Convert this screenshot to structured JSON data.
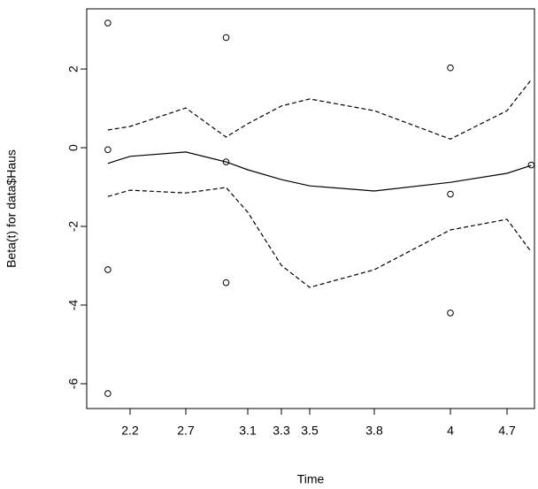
{
  "chart_data": {
    "type": "scatter",
    "x_label": "Time",
    "y_label": "Beta(t) for data$Haus",
    "color": "#000000",
    "x": [
      2.0,
      2.0,
      2.0,
      2.0,
      2.96,
      2.96,
      2.96,
      4.0,
      4.0,
      4.0,
      5.0
    ],
    "y": [
      3.17,
      -0.05,
      -3.1,
      -6.25,
      2.8,
      -0.36,
      -3.43,
      2.03,
      -1.18,
      -4.2,
      -0.44
    ],
    "curve": {
      "x": [
        2.0,
        2.2,
        2.7,
        2.96,
        3.1,
        3.3,
        3.5,
        3.8,
        4.0,
        4.7,
        5.0
      ],
      "fit": [
        -0.4,
        -0.22,
        -0.11,
        -0.36,
        -0.56,
        -0.81,
        -0.97,
        -1.1,
        -0.88,
        -0.65,
        -0.45
      ],
      "upper": [
        0.45,
        0.54,
        1.01,
        0.27,
        0.61,
        1.06,
        1.24,
        0.94,
        0.22,
        0.94,
        1.73
      ],
      "lower": [
        -1.24,
        -1.08,
        -1.15,
        -1.01,
        -1.64,
        -2.99,
        -3.55,
        -3.1,
        -2.09,
        -1.82,
        -2.65
      ]
    },
    "xlim": [
      1.81,
      5.04
    ],
    "xticks": [
      2.2,
      2.7,
      3.1,
      3.3,
      3.5,
      3.8,
      4,
      4.7
    ],
    "ylim": [
      -6.63,
      3.53
    ],
    "yticks": [
      -6,
      -4,
      -2,
      0,
      2
    ]
  }
}
